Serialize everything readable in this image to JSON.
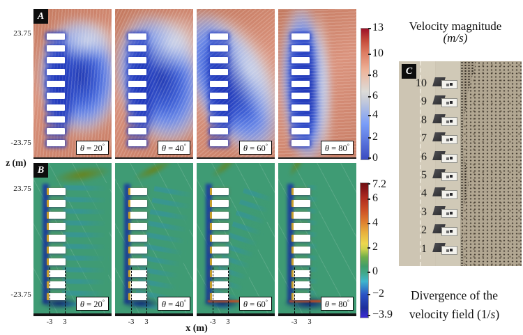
{
  "panels": {
    "a": {
      "label": "A"
    },
    "b": {
      "label": "B"
    },
    "c": {
      "label": "C"
    }
  },
  "theta_labels": [
    {
      "sym": "θ",
      "eq": "=",
      "val": "20",
      "deg": "°"
    },
    {
      "sym": "θ",
      "eq": "=",
      "val": "40",
      "deg": "°"
    },
    {
      "sym": "θ",
      "eq": "=",
      "val": "60",
      "deg": "°"
    },
    {
      "sym": "θ",
      "eq": "=",
      "val": "80",
      "deg": "°"
    }
  ],
  "axes": {
    "z_label": "z (m)",
    "x_label": "x (m)",
    "z_top": "23.75",
    "z_bottom": "-23.75",
    "x_left": "-3",
    "x_right": "3"
  },
  "colorbar_velocity": {
    "title": "Velocity magnitude",
    "units": "(m/s)",
    "ticks": [
      "13",
      "10",
      "8",
      "6",
      "4",
      "2",
      "0"
    ]
  },
  "colorbar_divergence": {
    "caption_line1": "Divergence of the",
    "caption_line2_pre": "velocity field (1/",
    "caption_line2_s": "s",
    "caption_line2_post": ")",
    "ticks": [
      "7.2",
      "6",
      "4",
      "2",
      "0",
      "−2",
      "−3.9"
    ]
  },
  "panel_c": {
    "buildings": [
      "10",
      "9",
      "8",
      "7",
      "6",
      "5",
      "4",
      "3",
      "2",
      "1"
    ]
  },
  "chart_data": [
    {
      "type": "heatmap",
      "panel_label": "A",
      "title": "Velocity magnitude (m/s)",
      "panels": [
        {
          "theta_deg": 20
        },
        {
          "theta_deg": 40
        },
        {
          "theta_deg": 60
        },
        {
          "theta_deg": 80
        }
      ],
      "xlabel": "x (m)",
      "ylabel": "z (m)",
      "x_ticks": [
        -3,
        3
      ],
      "z_ticks": [
        23.75,
        -23.75
      ],
      "n_buildings": 10,
      "colorbar": {
        "min": 0,
        "max": 13,
        "ticks": [
          13,
          10,
          8,
          6,
          4,
          2,
          0
        ],
        "units": "m/s",
        "colormap": "coolwarm blue-white-red",
        "low_color": "#3a4bc0",
        "mid_color": "#dcdbd8",
        "high_color": "#9d1127"
      }
    },
    {
      "type": "heatmap",
      "panel_label": "B",
      "title": "Divergence of the velocity field (1/s)",
      "panels": [
        {
          "theta_deg": 20
        },
        {
          "theta_deg": 40
        },
        {
          "theta_deg": 60
        },
        {
          "theta_deg": 80
        }
      ],
      "xlabel": "x (m)",
      "ylabel": "z (m)",
      "x_ticks": [
        -3,
        3
      ],
      "z_ticks": [
        23.75,
        -23.75
      ],
      "n_buildings": 10,
      "colorbar": {
        "min": -3.9,
        "max": 7.2,
        "ticks": [
          7.2,
          6,
          4,
          2,
          0,
          -2,
          -3.9
        ],
        "units": "1/s",
        "colormap": "rainbow violet-blue-cyan-green-yellow-red",
        "low_color": "#3e2bd6",
        "mid_color": "#3f9e6b",
        "high_color": "#701012"
      }
    },
    {
      "type": "table",
      "panel_label": "C",
      "title": "Aerial photo of the 10-building array",
      "building_numbers": [
        10,
        9,
        8,
        7,
        6,
        5,
        4,
        3,
        2,
        1
      ]
    }
  ]
}
